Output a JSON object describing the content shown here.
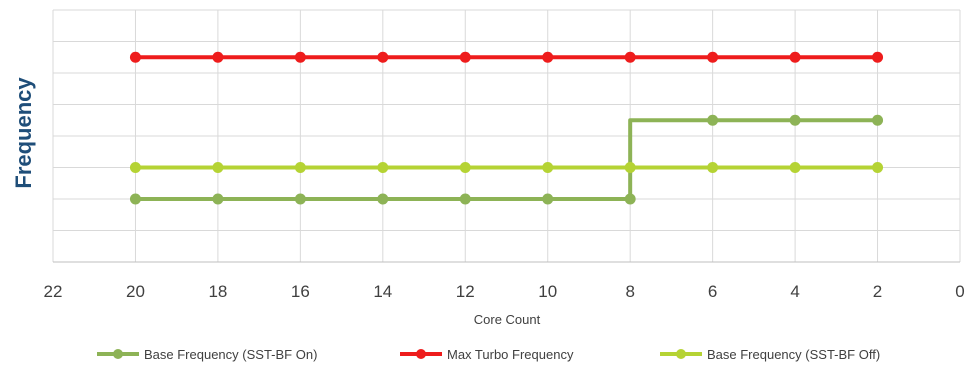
{
  "chart_data": {
    "type": "line",
    "xlabel": "Core Count",
    "ylabel": "Frequency",
    "x_reversed": true,
    "xlim": [
      0,
      22
    ],
    "x_ticks": [
      22,
      20,
      18,
      16,
      14,
      12,
      10,
      8,
      6,
      4,
      2,
      0
    ],
    "y_ticks_labeled": false,
    "ylim": [
      0,
      8
    ],
    "y_gridlines": [
      1,
      2,
      3,
      4,
      5,
      6,
      7
    ],
    "grid": true,
    "legend_position": "bottom",
    "series": [
      {
        "name": "Base Frequency (SST-BF On)",
        "color": "#8db356",
        "x": [
          20,
          18,
          16,
          14,
          12,
          10,
          8,
          8,
          6,
          4,
          2
        ],
        "y": [
          2,
          2,
          2,
          2,
          2,
          2,
          2,
          4.5,
          4.5,
          4.5,
          4.5
        ]
      },
      {
        "name": "Max Turbo Frequency",
        "color": "#ee1c1c",
        "x": [
          20,
          18,
          16,
          14,
          12,
          10,
          8,
          6,
          4,
          2
        ],
        "y": [
          6.5,
          6.5,
          6.5,
          6.5,
          6.5,
          6.5,
          6.5,
          6.5,
          6.5,
          6.5
        ]
      },
      {
        "name": "Base Frequency (SST-BF Off)",
        "color": "#b5d334",
        "x": [
          20,
          18,
          16,
          14,
          12,
          10,
          8,
          6,
          4,
          2
        ],
        "y": [
          3,
          3,
          3,
          3,
          3,
          3,
          3,
          3,
          3,
          3
        ]
      }
    ]
  }
}
